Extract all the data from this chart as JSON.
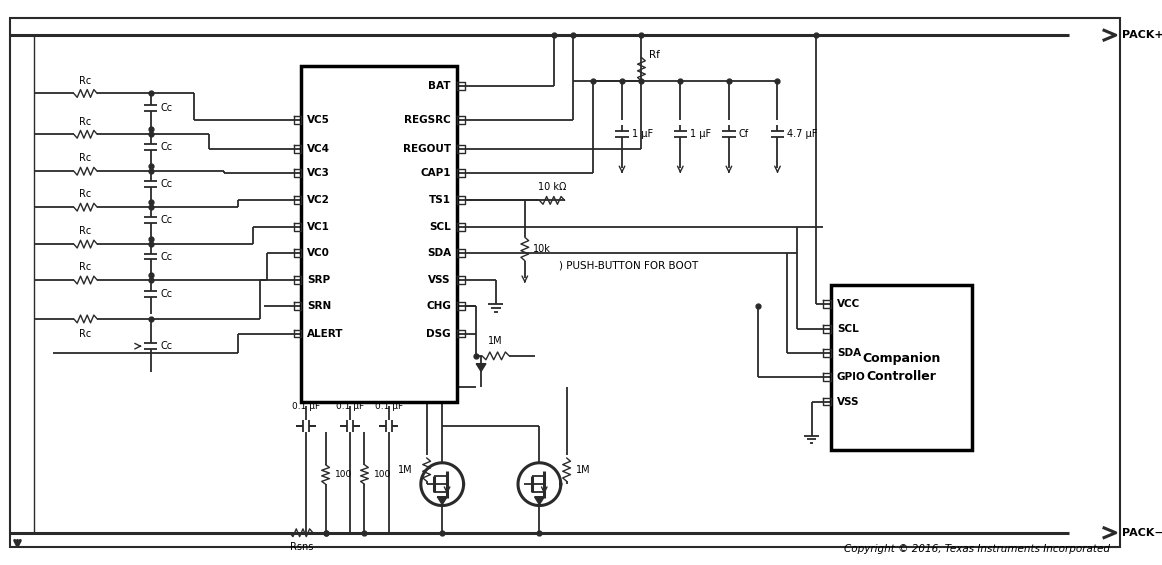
{
  "bg": "#ffffff",
  "lc": "#2a2a2a",
  "tc": "#000000",
  "copyright": "Copyright © 2016, Texas Instruments Incorporated",
  "pack_plus": "PACK+",
  "pack_minus": "PACK−",
  "ic_left_pins": [
    "VC5",
    "VC4",
    "VC3",
    "VC2",
    "VC1",
    "VC0",
    "SRP",
    "SRN",
    "ALERT"
  ],
  "ic_right_pins": [
    "BAT",
    "REGSRC",
    "REGOUT",
    "CAP1",
    "TS1",
    "SCL",
    "SDA",
    "VSS",
    "CHG",
    "DSG"
  ],
  "companion_pins": [
    "VCC",
    "SCL",
    "SDA",
    "GPIO",
    "VSS"
  ],
  "cap_labels": [
    "1 μF",
    "1 μF",
    "Cf",
    "4.7 μF"
  ]
}
